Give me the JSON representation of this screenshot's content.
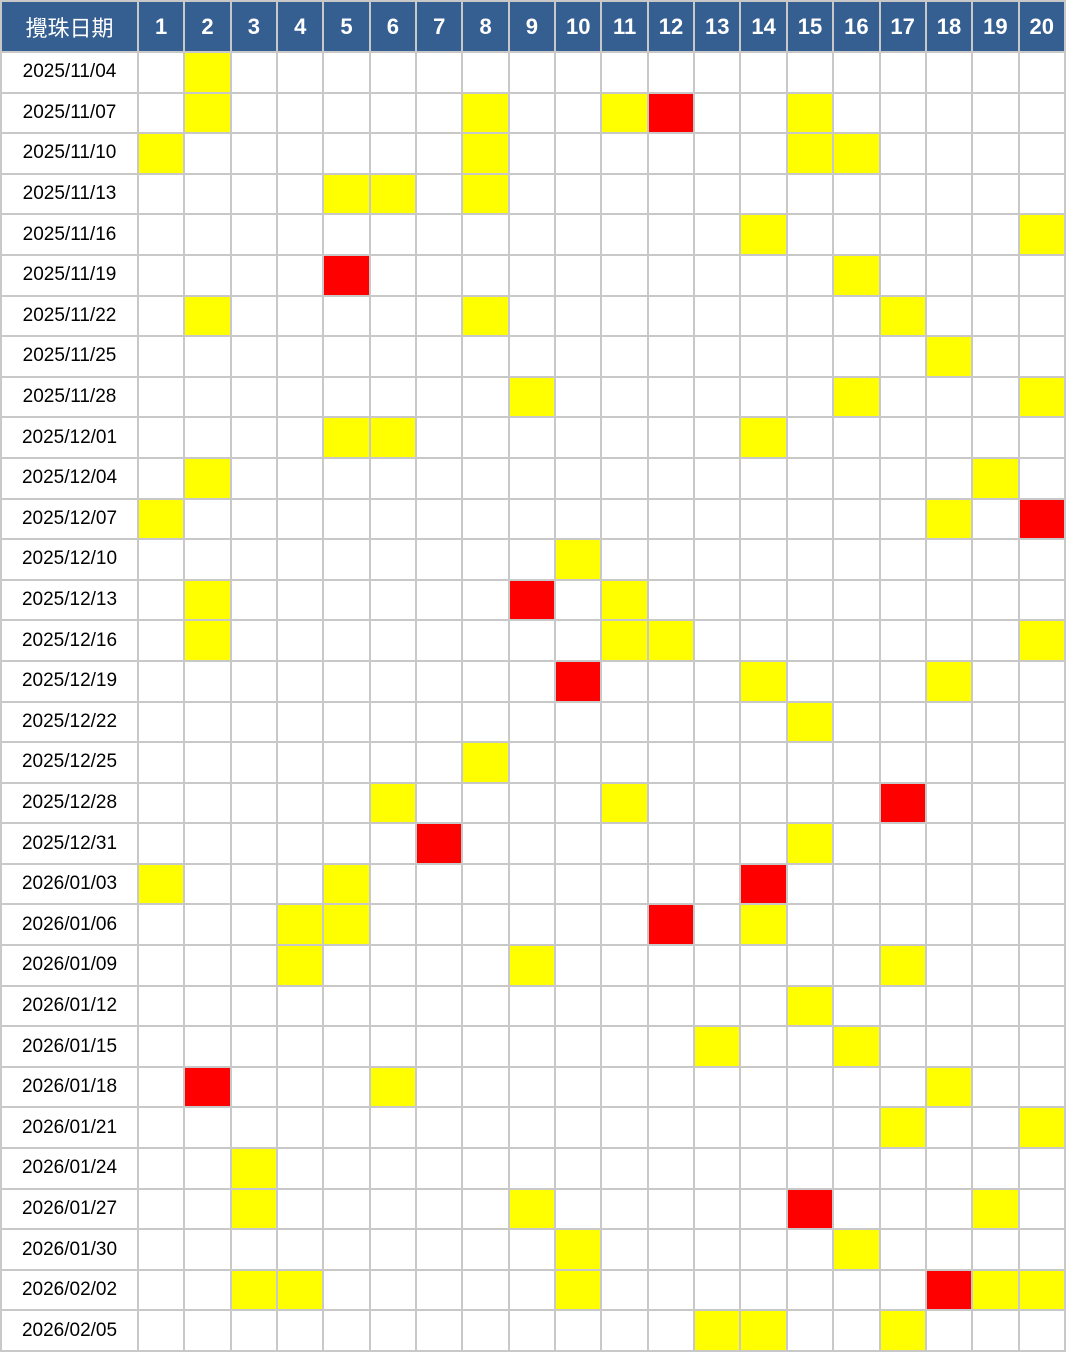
{
  "header": {
    "date_label": "攪珠日期",
    "numbers": [
      "1",
      "2",
      "3",
      "4",
      "5",
      "6",
      "7",
      "8",
      "9",
      "10",
      "11",
      "12",
      "13",
      "14",
      "15",
      "16",
      "17",
      "18",
      "19",
      "20"
    ]
  },
  "colors": {
    "header_bg": "#355e91",
    "yellow": "#ffff00",
    "red": "#ff0000"
  },
  "rows": [
    {
      "date": "2025/11/04",
      "yellow": [
        2
      ],
      "red": []
    },
    {
      "date": "2025/11/07",
      "yellow": [
        2,
        8,
        11,
        15
      ],
      "red": [
        12
      ]
    },
    {
      "date": "2025/11/10",
      "yellow": [
        1,
        8,
        15,
        16
      ],
      "red": []
    },
    {
      "date": "2025/11/13",
      "yellow": [
        5,
        6,
        8
      ],
      "red": []
    },
    {
      "date": "2025/11/16",
      "yellow": [
        14,
        20
      ],
      "red": []
    },
    {
      "date": "2025/11/19",
      "yellow": [
        16
      ],
      "red": [
        5
      ]
    },
    {
      "date": "2025/11/22",
      "yellow": [
        2,
        8,
        17
      ],
      "red": []
    },
    {
      "date": "2025/11/25",
      "yellow": [
        18
      ],
      "red": []
    },
    {
      "date": "2025/11/28",
      "yellow": [
        9,
        16,
        20
      ],
      "red": []
    },
    {
      "date": "2025/12/01",
      "yellow": [
        5,
        6,
        14
      ],
      "red": []
    },
    {
      "date": "2025/12/04",
      "yellow": [
        2,
        19
      ],
      "red": []
    },
    {
      "date": "2025/12/07",
      "yellow": [
        1,
        18
      ],
      "red": [
        20
      ]
    },
    {
      "date": "2025/12/10",
      "yellow": [
        10
      ],
      "red": []
    },
    {
      "date": "2025/12/13",
      "yellow": [
        2,
        11
      ],
      "red": [
        9
      ]
    },
    {
      "date": "2025/12/16",
      "yellow": [
        2,
        11,
        12,
        20
      ],
      "red": []
    },
    {
      "date": "2025/12/19",
      "yellow": [
        14,
        18
      ],
      "red": [
        10
      ]
    },
    {
      "date": "2025/12/22",
      "yellow": [
        15
      ],
      "red": []
    },
    {
      "date": "2025/12/25",
      "yellow": [
        8
      ],
      "red": []
    },
    {
      "date": "2025/12/28",
      "yellow": [
        6,
        11
      ],
      "red": [
        17
      ]
    },
    {
      "date": "2025/12/31",
      "yellow": [
        15
      ],
      "red": [
        7
      ]
    },
    {
      "date": "2026/01/03",
      "yellow": [
        1,
        5
      ],
      "red": [
        14
      ]
    },
    {
      "date": "2026/01/06",
      "yellow": [
        4,
        5,
        14
      ],
      "red": [
        12
      ]
    },
    {
      "date": "2026/01/09",
      "yellow": [
        4,
        9,
        17
      ],
      "red": []
    },
    {
      "date": "2026/01/12",
      "yellow": [
        15
      ],
      "red": []
    },
    {
      "date": "2026/01/15",
      "yellow": [
        13,
        16
      ],
      "red": []
    },
    {
      "date": "2026/01/18",
      "yellow": [
        6,
        18
      ],
      "red": [
        2
      ]
    },
    {
      "date": "2026/01/21",
      "yellow": [
        17,
        20
      ],
      "red": []
    },
    {
      "date": "2026/01/24",
      "yellow": [
        3
      ],
      "red": []
    },
    {
      "date": "2026/01/27",
      "yellow": [
        3,
        9,
        19
      ],
      "red": [
        15
      ]
    },
    {
      "date": "2026/01/30",
      "yellow": [
        10,
        16
      ],
      "red": []
    },
    {
      "date": "2026/02/02",
      "yellow": [
        3,
        4,
        10,
        19,
        20
      ],
      "red": [
        18
      ]
    },
    {
      "date": "2026/02/05",
      "yellow": [
        13,
        14,
        17
      ],
      "red": []
    }
  ]
}
